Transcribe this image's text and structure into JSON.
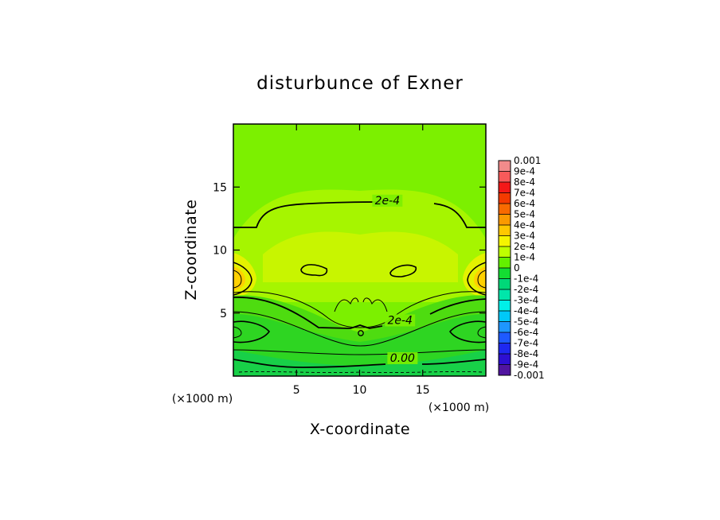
{
  "chart_data": {
    "type": "heatmap",
    "title": "disturbunce of Exner",
    "xlabel": "X-coordinate",
    "ylabel": "Z-coordinate",
    "x_unit": "(×1000 m)",
    "y_unit": "(×1000 m)",
    "xlim": [
      0,
      20
    ],
    "ylim": [
      0,
      20
    ],
    "x_ticks": [
      5,
      10,
      15
    ],
    "y_ticks": [
      5,
      10,
      15
    ],
    "colorbar": {
      "min": -0.001,
      "max": 0.001,
      "labels": [
        "0.001",
        "9e-4",
        "8e-4",
        "7e-4",
        "6e-4",
        "5e-4",
        "4e-4",
        "3e-4",
        "2e-4",
        "1e-4",
        "0",
        "-1e-4",
        "-2e-4",
        "-3e-4",
        "-4e-4",
        "-5e-4",
        "-6e-4",
        "-7e-4",
        "-8e-4",
        "-9e-4",
        "-0.001"
      ],
      "colors": [
        "#f28b8b",
        "#f85a5a",
        "#f41818",
        "#f43a00",
        "#f86a00",
        "#fb9a00",
        "#ffc800",
        "#f5f500",
        "#bfff00",
        "#64f000",
        "#14dc32",
        "#00d878",
        "#00e6aa",
        "#00f0e8",
        "#00c8f8",
        "#1e96ff",
        "#1e5aff",
        "#1e28f0",
        "#2d0fd2",
        "#5014a0"
      ]
    },
    "contour_labels": [
      {
        "text": "2e-4",
        "x": 12.2,
        "z": 13.7
      },
      {
        "text": "2e-4",
        "x": 13.2,
        "z": 4.2
      },
      {
        "text": "0.00",
        "x": 13.4,
        "z": 1.2
      }
    ]
  }
}
